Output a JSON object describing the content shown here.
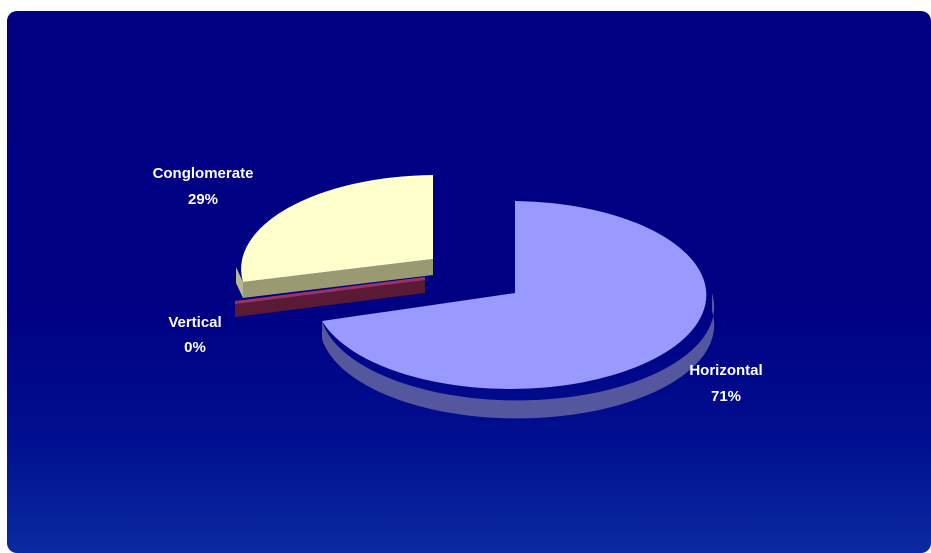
{
  "chart_data": {
    "type": "pie",
    "three_d": true,
    "title": "",
    "slices": [
      {
        "name": "Horizontal",
        "value": 71,
        "pct_label": "71%",
        "color": "#9999FF",
        "side_color": "#55579E"
      },
      {
        "name": "Vertical",
        "value": 0,
        "pct_label": "0%",
        "color": "#993366",
        "side_color": "#5A1A35"
      },
      {
        "name": "Conglomerate",
        "value": 29,
        "pct_label": "29%",
        "color": "#FFFFCC",
        "side_color": "#9A9A72"
      }
    ],
    "legend": "none",
    "background_color": "#000080"
  }
}
